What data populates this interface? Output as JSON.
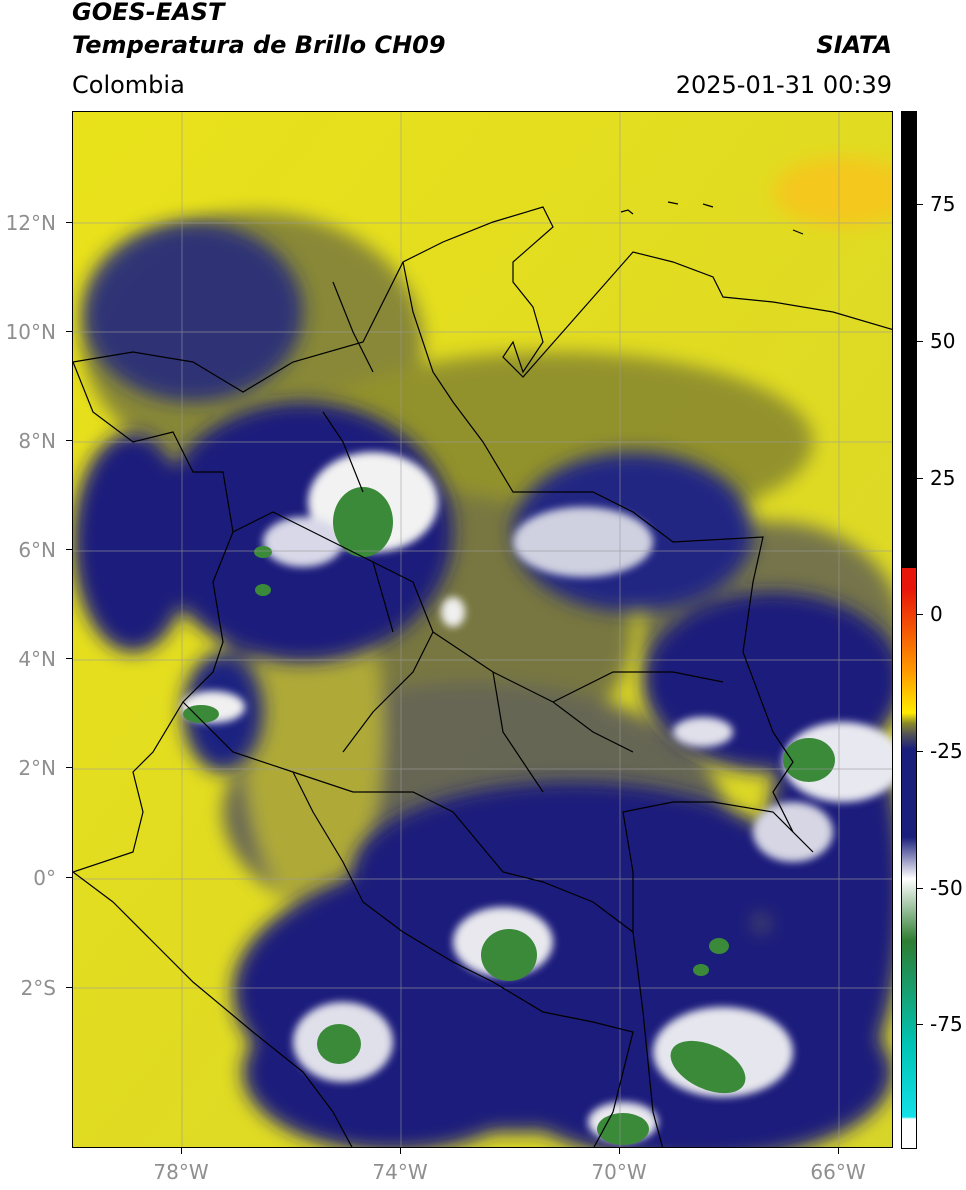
{
  "header": {
    "satellite": "GOES-EAST",
    "product": "Temperatura de Brillo CH09",
    "brand": "SIATA",
    "region": "Colombia",
    "datetime": "2025-01-31 00:39"
  },
  "axes": {
    "lat_labels": [
      "12°N",
      "10°N",
      "8°N",
      "6°N",
      "4°N",
      "2°N",
      "0°",
      "2°S"
    ],
    "lon_labels": [
      "78°W",
      "74°W",
      "70°W",
      "66°W"
    ]
  },
  "colorbar": {
    "labels": [
      "75",
      "50",
      "25",
      "0",
      "-25",
      "-50",
      "-75"
    ],
    "colors": {
      "warm_black": "#000000",
      "red": "#e8150a",
      "orange": "#ff9a00",
      "yellow": "#ffec00",
      "olive": "#8a8a2a",
      "gray": "#555555",
      "navy": "#1a1f7c",
      "white": "#ffffff",
      "green": "#2e7d32",
      "teal": "#00c4b4",
      "cyan": "#14e0e8"
    }
  }
}
